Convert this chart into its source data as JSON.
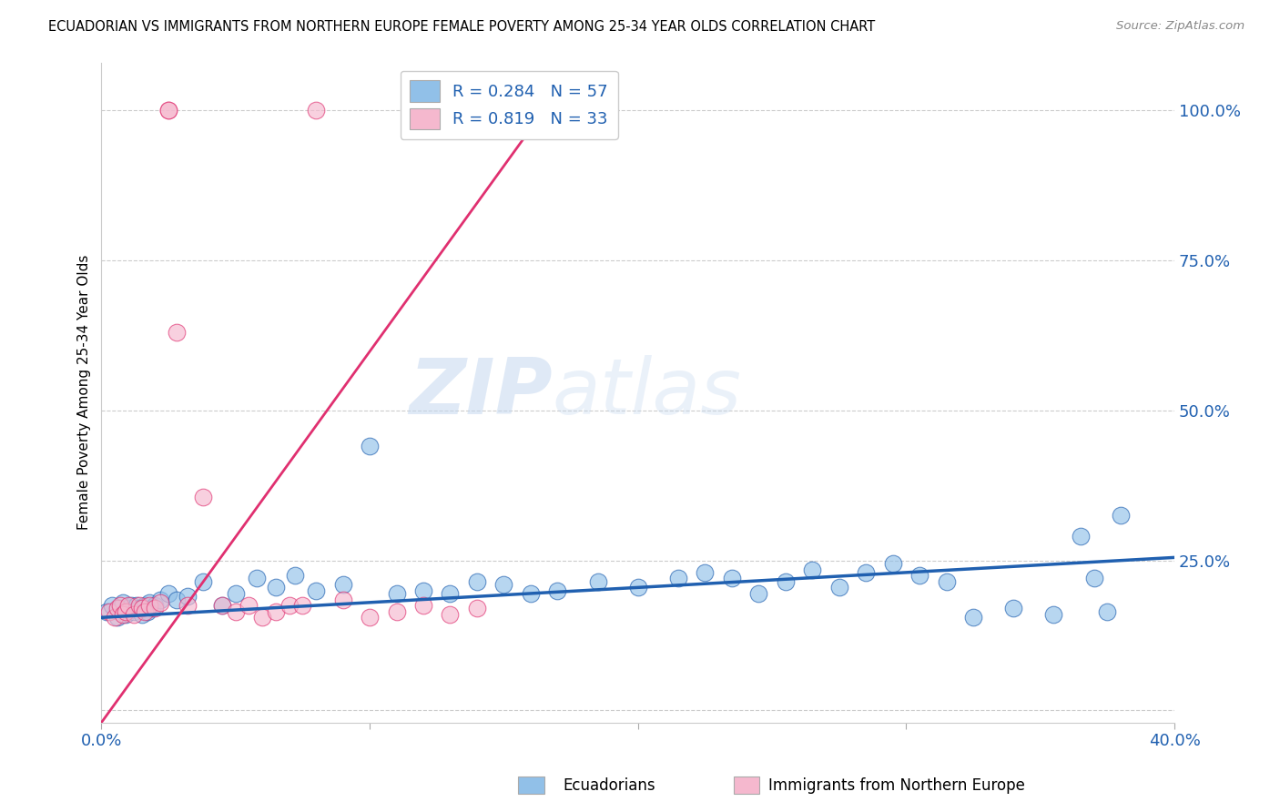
{
  "title": "ECUADORIAN VS IMMIGRANTS FROM NORTHERN EUROPE FEMALE POVERTY AMONG 25-34 YEAR OLDS CORRELATION CHART",
  "source": "Source: ZipAtlas.com",
  "xlabel_blue": "Ecuadorians",
  "xlabel_pink": "Immigrants from Northern Europe",
  "ylabel": "Female Poverty Among 25-34 Year Olds",
  "R_blue": 0.284,
  "N_blue": 57,
  "R_pink": 0.819,
  "N_pink": 33,
  "xlim": [
    0.0,
    0.4
  ],
  "ylim": [
    -0.02,
    1.08
  ],
  "color_blue": "#91c0e8",
  "color_pink": "#f5b8ce",
  "line_blue": "#2060b0",
  "line_pink": "#e03070",
  "watermark_zip": "ZIP",
  "watermark_atlas": "atlas",
  "blue_points_x": [
    0.002,
    0.004,
    0.006,
    0.007,
    0.008,
    0.009,
    0.01,
    0.011,
    0.012,
    0.013,
    0.014,
    0.015,
    0.016,
    0.017,
    0.018,
    0.019,
    0.02,
    0.022,
    0.025,
    0.028,
    0.032,
    0.038,
    0.045,
    0.05,
    0.058,
    0.065,
    0.072,
    0.08,
    0.09,
    0.1,
    0.11,
    0.12,
    0.13,
    0.14,
    0.15,
    0.16,
    0.17,
    0.185,
    0.2,
    0.215,
    0.225,
    0.235,
    0.245,
    0.255,
    0.265,
    0.275,
    0.285,
    0.295,
    0.305,
    0.315,
    0.325,
    0.34,
    0.355,
    0.365,
    0.37,
    0.375,
    0.38
  ],
  "blue_points_y": [
    0.165,
    0.175,
    0.155,
    0.17,
    0.18,
    0.16,
    0.17,
    0.175,
    0.165,
    0.175,
    0.17,
    0.16,
    0.175,
    0.165,
    0.18,
    0.17,
    0.175,
    0.185,
    0.195,
    0.185,
    0.19,
    0.215,
    0.175,
    0.195,
    0.22,
    0.205,
    0.225,
    0.2,
    0.21,
    0.44,
    0.195,
    0.2,
    0.195,
    0.215,
    0.21,
    0.195,
    0.2,
    0.215,
    0.205,
    0.22,
    0.23,
    0.22,
    0.195,
    0.215,
    0.235,
    0.205,
    0.23,
    0.245,
    0.225,
    0.215,
    0.155,
    0.17,
    0.16,
    0.29,
    0.22,
    0.165,
    0.325
  ],
  "pink_points_x": [
    0.003,
    0.005,
    0.006,
    0.007,
    0.008,
    0.009,
    0.01,
    0.012,
    0.014,
    0.015,
    0.016,
    0.018,
    0.02,
    0.022,
    0.025,
    0.028,
    0.032,
    0.038,
    0.045,
    0.05,
    0.06,
    0.065,
    0.07,
    0.075,
    0.08,
    0.025,
    0.055,
    0.09,
    0.1,
    0.11,
    0.12,
    0.13,
    0.14
  ],
  "pink_points_y": [
    0.165,
    0.155,
    0.17,
    0.175,
    0.16,
    0.165,
    0.175,
    0.16,
    0.175,
    0.17,
    0.165,
    0.175,
    0.17,
    0.18,
    1.0,
    0.63,
    0.175,
    0.355,
    0.175,
    0.165,
    0.155,
    0.165,
    0.175,
    0.175,
    1.0,
    1.0,
    0.175,
    0.185,
    0.155,
    0.165,
    0.175,
    0.16,
    0.17
  ],
  "blue_line_x0": 0.0,
  "blue_line_y0": 0.155,
  "blue_line_x1": 0.4,
  "blue_line_y1": 0.255,
  "pink_line_x0": 0.0,
  "pink_line_y0": -0.02,
  "pink_line_x1": 0.165,
  "pink_line_y1": 1.0
}
